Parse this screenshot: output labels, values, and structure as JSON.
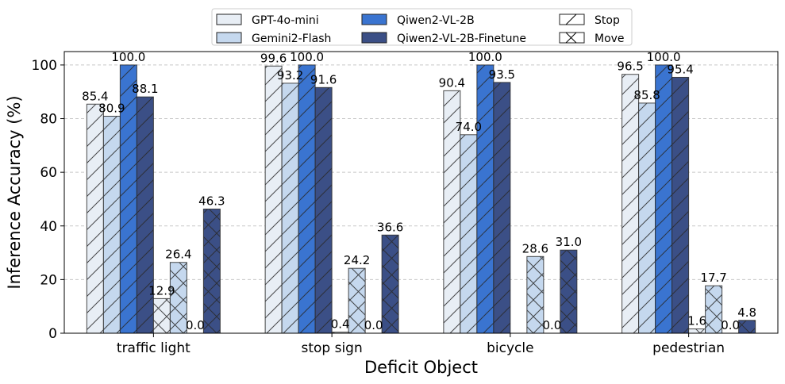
{
  "chart_data": {
    "type": "bar",
    "title": "",
    "xlabel": "Deficit Object",
    "ylabel": "Inference Accuracy (%)",
    "ylim": [
      0,
      105
    ],
    "yticks": [
      0,
      20,
      40,
      60,
      80,
      100
    ],
    "grid": "y dashed",
    "categories": [
      "traffic light",
      "stop sign",
      "bicycle",
      "pedestrian"
    ],
    "models": [
      {
        "name": "GPT-4o-mini",
        "color": "#e8eef5"
      },
      {
        "name": "Gemini2-Flash",
        "color": "#c5d8ee"
      },
      {
        "name": "Qiwen2-VL-2B",
        "color": "#3a74d0"
      },
      {
        "name": "Qiwen2-VL-2B-Finetune",
        "color": "#3b4f86"
      }
    ],
    "actions": [
      {
        "name": "Stop",
        "hatch": "single-diagonal"
      },
      {
        "name": "Move",
        "hatch": "cross-diagonal"
      }
    ],
    "series": [
      {
        "name": "GPT-4o-mini / Stop",
        "model": 0,
        "action": 0,
        "values": [
          85.4,
          99.6,
          90.4,
          96.5
        ],
        "labels": [
          "85.4",
          "99.6",
          "90.4",
          "96.5"
        ]
      },
      {
        "name": "Gemini2-Flash / Stop",
        "model": 1,
        "action": 0,
        "values": [
          80.9,
          93.2,
          74.0,
          85.8
        ],
        "labels": [
          "80.9",
          "93.2",
          "74.0",
          "85.8"
        ]
      },
      {
        "name": "Qiwen2-VL-2B / Stop",
        "model": 2,
        "action": 0,
        "values": [
          100.0,
          100.0,
          100.0,
          100.0
        ],
        "labels": [
          "100.0",
          "100.0",
          "100.0",
          "100.0"
        ]
      },
      {
        "name": "Qiwen2-VL-2B-Finetune / Stop",
        "model": 3,
        "action": 0,
        "values": [
          88.1,
          91.6,
          93.5,
          95.4
        ],
        "labels": [
          "88.1",
          "91.6",
          "93.5",
          "95.4"
        ]
      },
      {
        "name": "GPT-4o-mini / Move",
        "model": 0,
        "action": 1,
        "values": [
          12.9,
          0.4,
          0,
          1.6
        ],
        "labels": [
          "12.9",
          "0.4",
          "",
          "1.6"
        ]
      },
      {
        "name": "Gemini2-Flash / Move",
        "model": 1,
        "action": 1,
        "values": [
          26.4,
          24.2,
          28.6,
          17.7
        ],
        "labels": [
          "26.4",
          "24.2",
          "28.6",
          "17.7"
        ]
      },
      {
        "name": "Qiwen2-VL-2B / Move",
        "model": 2,
        "action": 1,
        "values": [
          0.0,
          0.0,
          0.0,
          0.0
        ],
        "labels": [
          "0.0",
          "0.0",
          "0.0",
          "0.0"
        ]
      },
      {
        "name": "Qiwen2-VL-2B-Finetune / Move",
        "model": 3,
        "action": 1,
        "values": [
          46.3,
          36.6,
          31.0,
          4.8
        ],
        "labels": [
          "46.3",
          "36.6",
          "31.0",
          "4.8"
        ]
      }
    ],
    "legend": {
      "position": "top-center",
      "entries": [
        "GPT-4o-mini",
        "Gemini2-Flash",
        "Qiwen2-VL-2B",
        "Qiwen2-VL-2B-Finetune",
        "Stop",
        "Move"
      ]
    }
  }
}
